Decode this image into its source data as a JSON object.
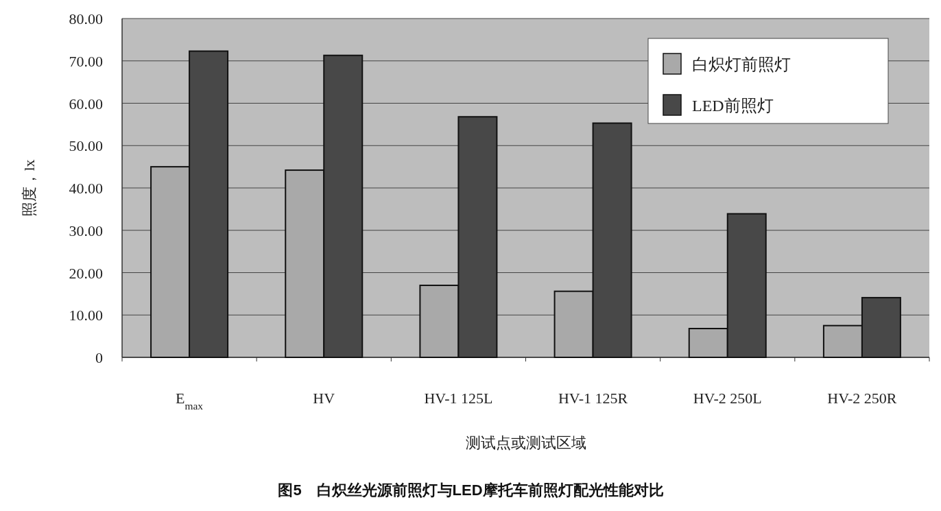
{
  "chart_data": {
    "type": "bar",
    "title": "图5　白炽丝光源前照灯与LED摩托车前照灯配光性能对比",
    "xlabel": "测试点或测试区域",
    "ylabel": "照度，lx",
    "categories": [
      "E$_{max}$",
      "HV",
      "HV-1 125L",
      "HV-1 125R",
      "HV-2 250L",
      "HV-2 250R"
    ],
    "series": [
      {
        "name": "白炽灯前照灯",
        "color": "#a9a9a9",
        "values": [
          45,
          44.2,
          17,
          15.6,
          6.8,
          7.5
        ]
      },
      {
        "name": "LED前照灯",
        "color": "#484848",
        "values": [
          72.3,
          71.3,
          56.8,
          55.3,
          33.9,
          14.1
        ]
      }
    ],
    "ylim": [
      0,
      80
    ],
    "yticks": [
      {
        "value": 0,
        "label": "0"
      },
      {
        "value": 10,
        "label": "10.00"
      },
      {
        "value": 20,
        "label": "20.00"
      },
      {
        "value": 30,
        "label": "30.00"
      },
      {
        "value": 40,
        "label": "40.00"
      },
      {
        "value": 50,
        "label": "50.00"
      },
      {
        "value": 60,
        "label": "60.00"
      },
      {
        "value": 70,
        "label": "70.00"
      },
      {
        "value": 80,
        "label": "80.00"
      }
    ],
    "grid": "y",
    "legend": "top right"
  }
}
